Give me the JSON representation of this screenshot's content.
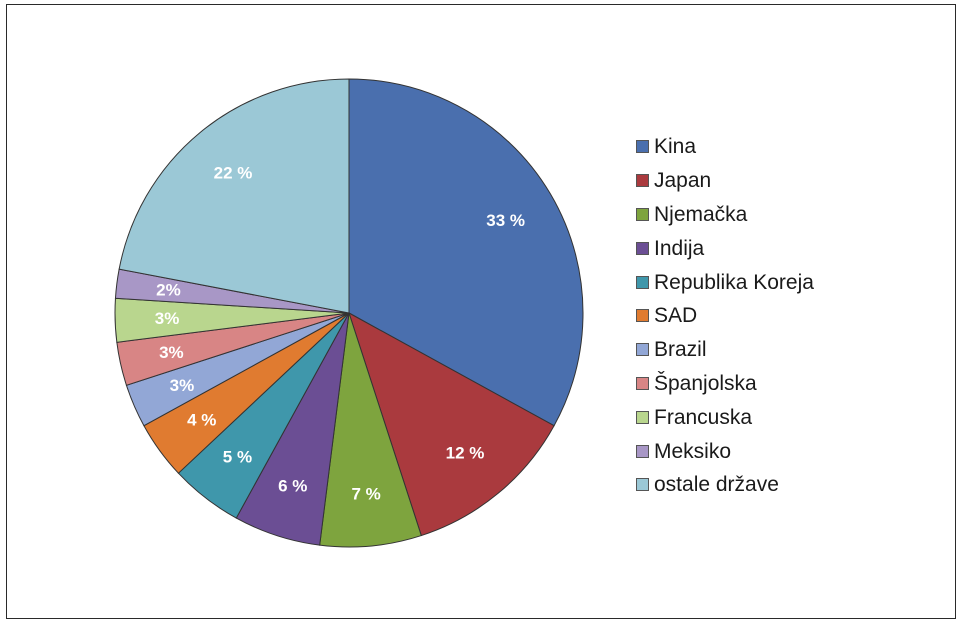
{
  "chart_data": {
    "type": "pie",
    "categories": [
      "Kina",
      "Japan",
      "Njemačka",
      "Indija",
      "Republika Koreja",
      "SAD",
      "Brazil",
      "Španjolska",
      "Francuska",
      "Meksiko",
      "ostale države"
    ],
    "values": [
      33,
      12,
      7,
      6,
      5,
      4,
      3,
      3,
      3,
      2,
      22
    ],
    "labels": [
      "33 %",
      "12 %",
      "7 %",
      "6 %",
      "5 %",
      "4 %",
      "3%",
      "3%",
      "3%",
      "2%",
      "22 %"
    ],
    "colors": [
      "#4a6fae",
      "#aa3a3e",
      "#7ea43e",
      "#6b4e94",
      "#3f97ab",
      "#e07b30",
      "#92a7d6",
      "#d88585",
      "#b9d68e",
      "#a897c6",
      "#9bc8d6"
    ],
    "legend_position": "right",
    "title": ""
  }
}
